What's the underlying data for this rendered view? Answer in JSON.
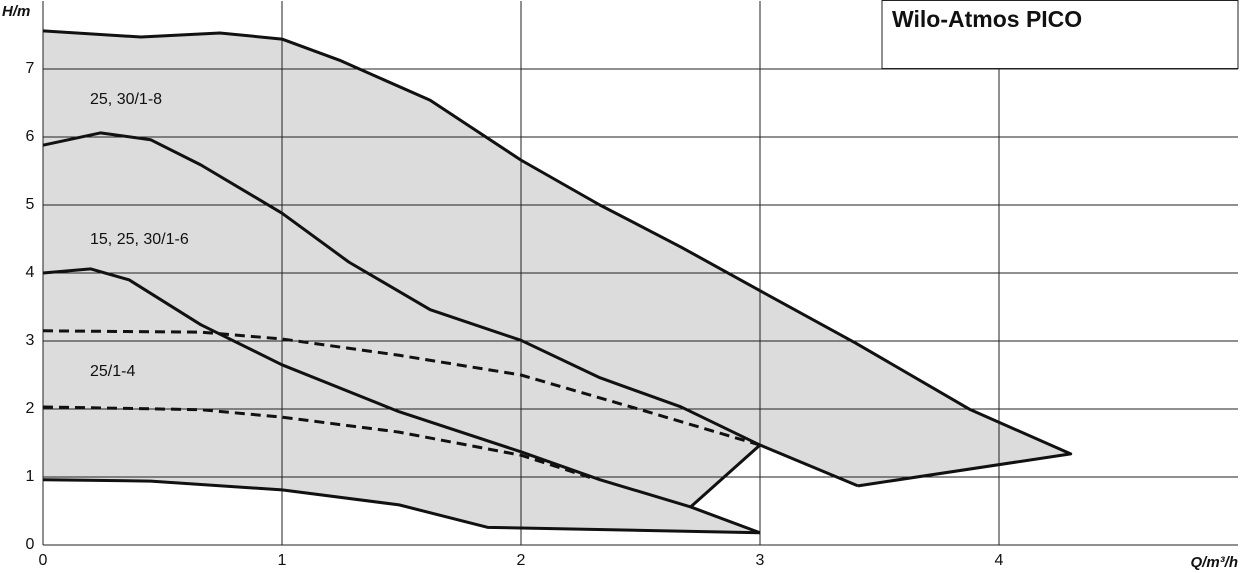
{
  "chart_data": {
    "type": "line",
    "title": "Wilo-Atmos PICO",
    "y_label": "H/m",
    "x_label": "Q/m³/h",
    "xlim": [
      0,
      5
    ],
    "ylim": [
      0,
      8
    ],
    "xticks": [
      0,
      1,
      2,
      3,
      4
    ],
    "yticks": [
      0,
      1,
      2,
      3,
      4,
      5,
      6,
      7
    ],
    "grid": true,
    "fill_color": "#dcdcdc",
    "annotations": [
      "25, 30/1-8",
      "15, 25, 30/1-6",
      "25/1-4"
    ],
    "shaded": {
      "x": [
        0,
        0.41,
        0.74,
        1,
        1.24,
        1.62,
        2,
        2.33,
        2.67,
        3,
        3.4,
        3.88,
        4.3,
        3.41,
        3,
        2.71,
        3,
        1.86,
        1.49,
        1,
        0.45,
        0
      ],
      "values": [
        7.56,
        7.47,
        7.53,
        7.44,
        7.13,
        6.54,
        5.66,
        5.0,
        4.38,
        3.74,
        2.97,
        1.99,
        1.34,
        0.87,
        1.47,
        0.56,
        0.18,
        0.26,
        0.59,
        0.81,
        0.94,
        0.96
      ]
    },
    "series": [
      {
        "dashed": false,
        "x": [
          0,
          0.41,
          0.74,
          1,
          1.24,
          1.62,
          2,
          2.33,
          2.67,
          3,
          3.4,
          3.88,
          4.3,
          3.41
        ],
        "values": [
          7.56,
          7.47,
          7.53,
          7.44,
          7.13,
          6.54,
          5.66,
          5.0,
          4.38,
          3.74,
          2.97,
          1.99,
          1.34,
          0.87
        ]
      },
      {
        "dashed": false,
        "x": [
          0,
          0.24,
          0.45,
          0.66,
          1,
          1.28,
          1.62,
          2,
          2.33,
          2.67,
          3,
          3.41
        ],
        "values": [
          5.88,
          6.06,
          5.96,
          5.59,
          4.88,
          4.16,
          3.46,
          3.01,
          2.46,
          2.03,
          1.47,
          0.87
        ]
      },
      {
        "dashed": false,
        "x": [
          3,
          2.71
        ],
        "values": [
          1.47,
          0.56
        ]
      },
      {
        "dashed": false,
        "x": [
          0,
          0.2,
          0.36,
          0.66,
          1,
          1.49,
          2,
          2.33,
          2.71,
          3
        ],
        "values": [
          4.0,
          4.06,
          3.9,
          3.24,
          2.65,
          1.96,
          1.37,
          0.96,
          0.56,
          0.18
        ]
      },
      {
        "dashed": true,
        "x": [
          0,
          0.66,
          1,
          1.49,
          2,
          2.5,
          3
        ],
        "values": [
          3.15,
          3.13,
          3.03,
          2.79,
          2.5,
          1.99,
          1.47
        ]
      },
      {
        "dashed": true,
        "x": [
          0,
          0.66,
          1,
          1.49,
          2,
          2.31
        ],
        "values": [
          2.03,
          1.99,
          1.88,
          1.66,
          1.32,
          0.97
        ]
      },
      {
        "dashed": false,
        "x": [
          0,
          0.45,
          1,
          1.49,
          1.86,
          3
        ],
        "values": [
          0.96,
          0.94,
          0.81,
          0.59,
          0.26,
          0.18
        ]
      }
    ]
  }
}
